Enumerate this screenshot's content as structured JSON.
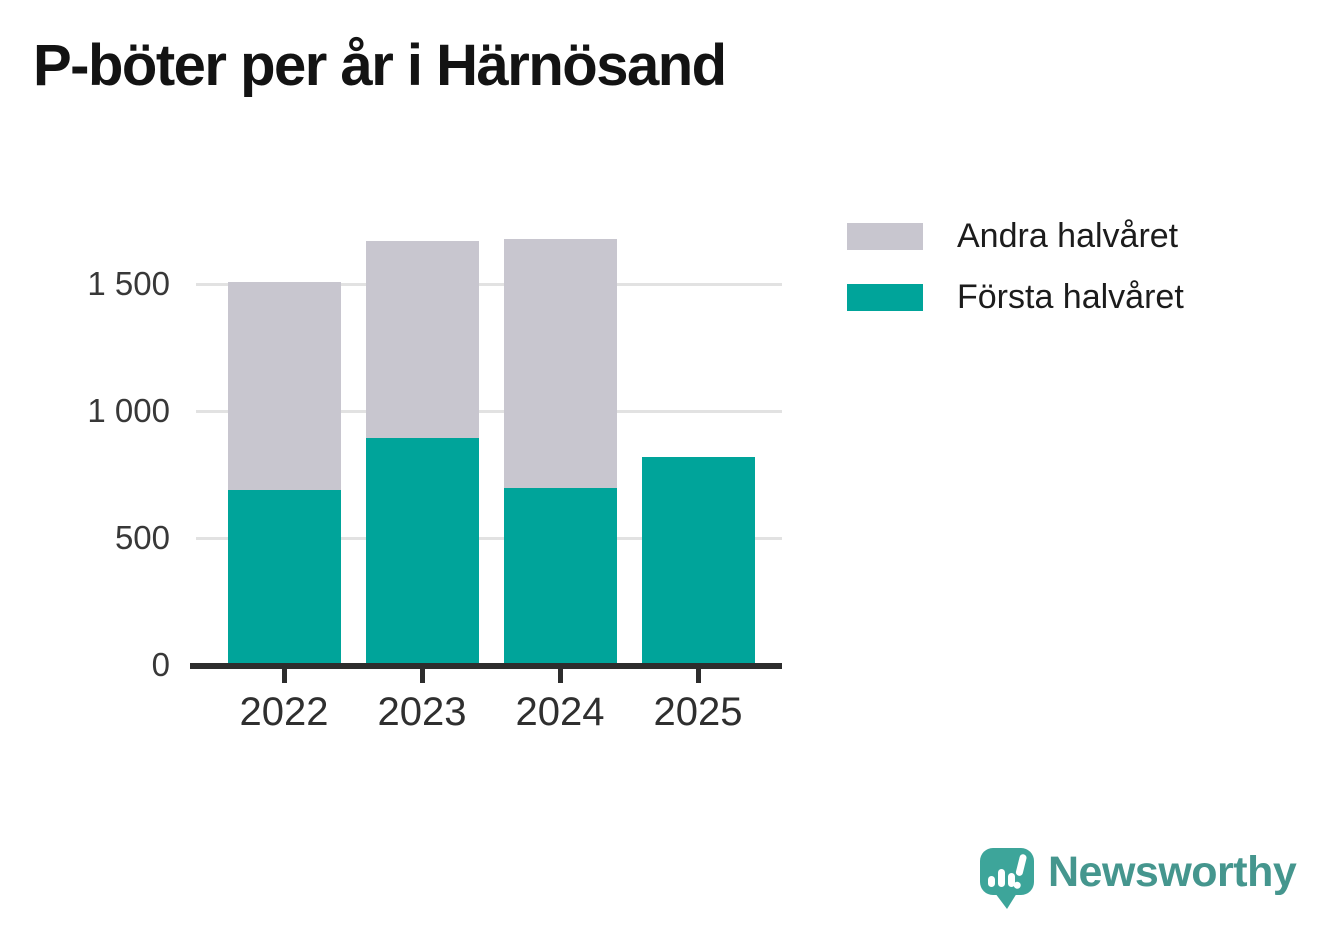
{
  "page": {
    "title": "P-böter per år i Härnösand"
  },
  "chart_data": {
    "type": "bar",
    "stacked": true,
    "title": "P-böter per år i Härnösand",
    "categories": [
      "2022",
      "2023",
      "2024",
      "2025"
    ],
    "series": [
      {
        "name": "Första halvåret",
        "color": "#00a49a",
        "values": [
          690,
          895,
          695,
          820
        ]
      },
      {
        "name": "Andra halvåret",
        "color": "#c8c6cf",
        "values": [
          820,
          775,
          980,
          0
        ]
      }
    ],
    "totals": [
      1510,
      1670,
      1675,
      820
    ],
    "xlabel": "",
    "ylabel": "",
    "ylim": [
      0,
      1830
    ],
    "y_ticks": [
      {
        "value": 0,
        "label": "0"
      },
      {
        "value": 500,
        "label": "500"
      },
      {
        "value": 1000,
        "label": "1 000"
      },
      {
        "value": 1500,
        "label": "1 500"
      }
    ],
    "grid": "horizontal",
    "legend_position": "top-right",
    "legend": [
      {
        "label": "Andra halvåret",
        "color": "#c8c6cf"
      },
      {
        "label": "Första halvåret",
        "color": "#00a49a"
      }
    ]
  },
  "branding": {
    "logo_text": "Newsworthy",
    "logo_text_color": "#45968e",
    "logo_icon_color": "#3da59a"
  }
}
